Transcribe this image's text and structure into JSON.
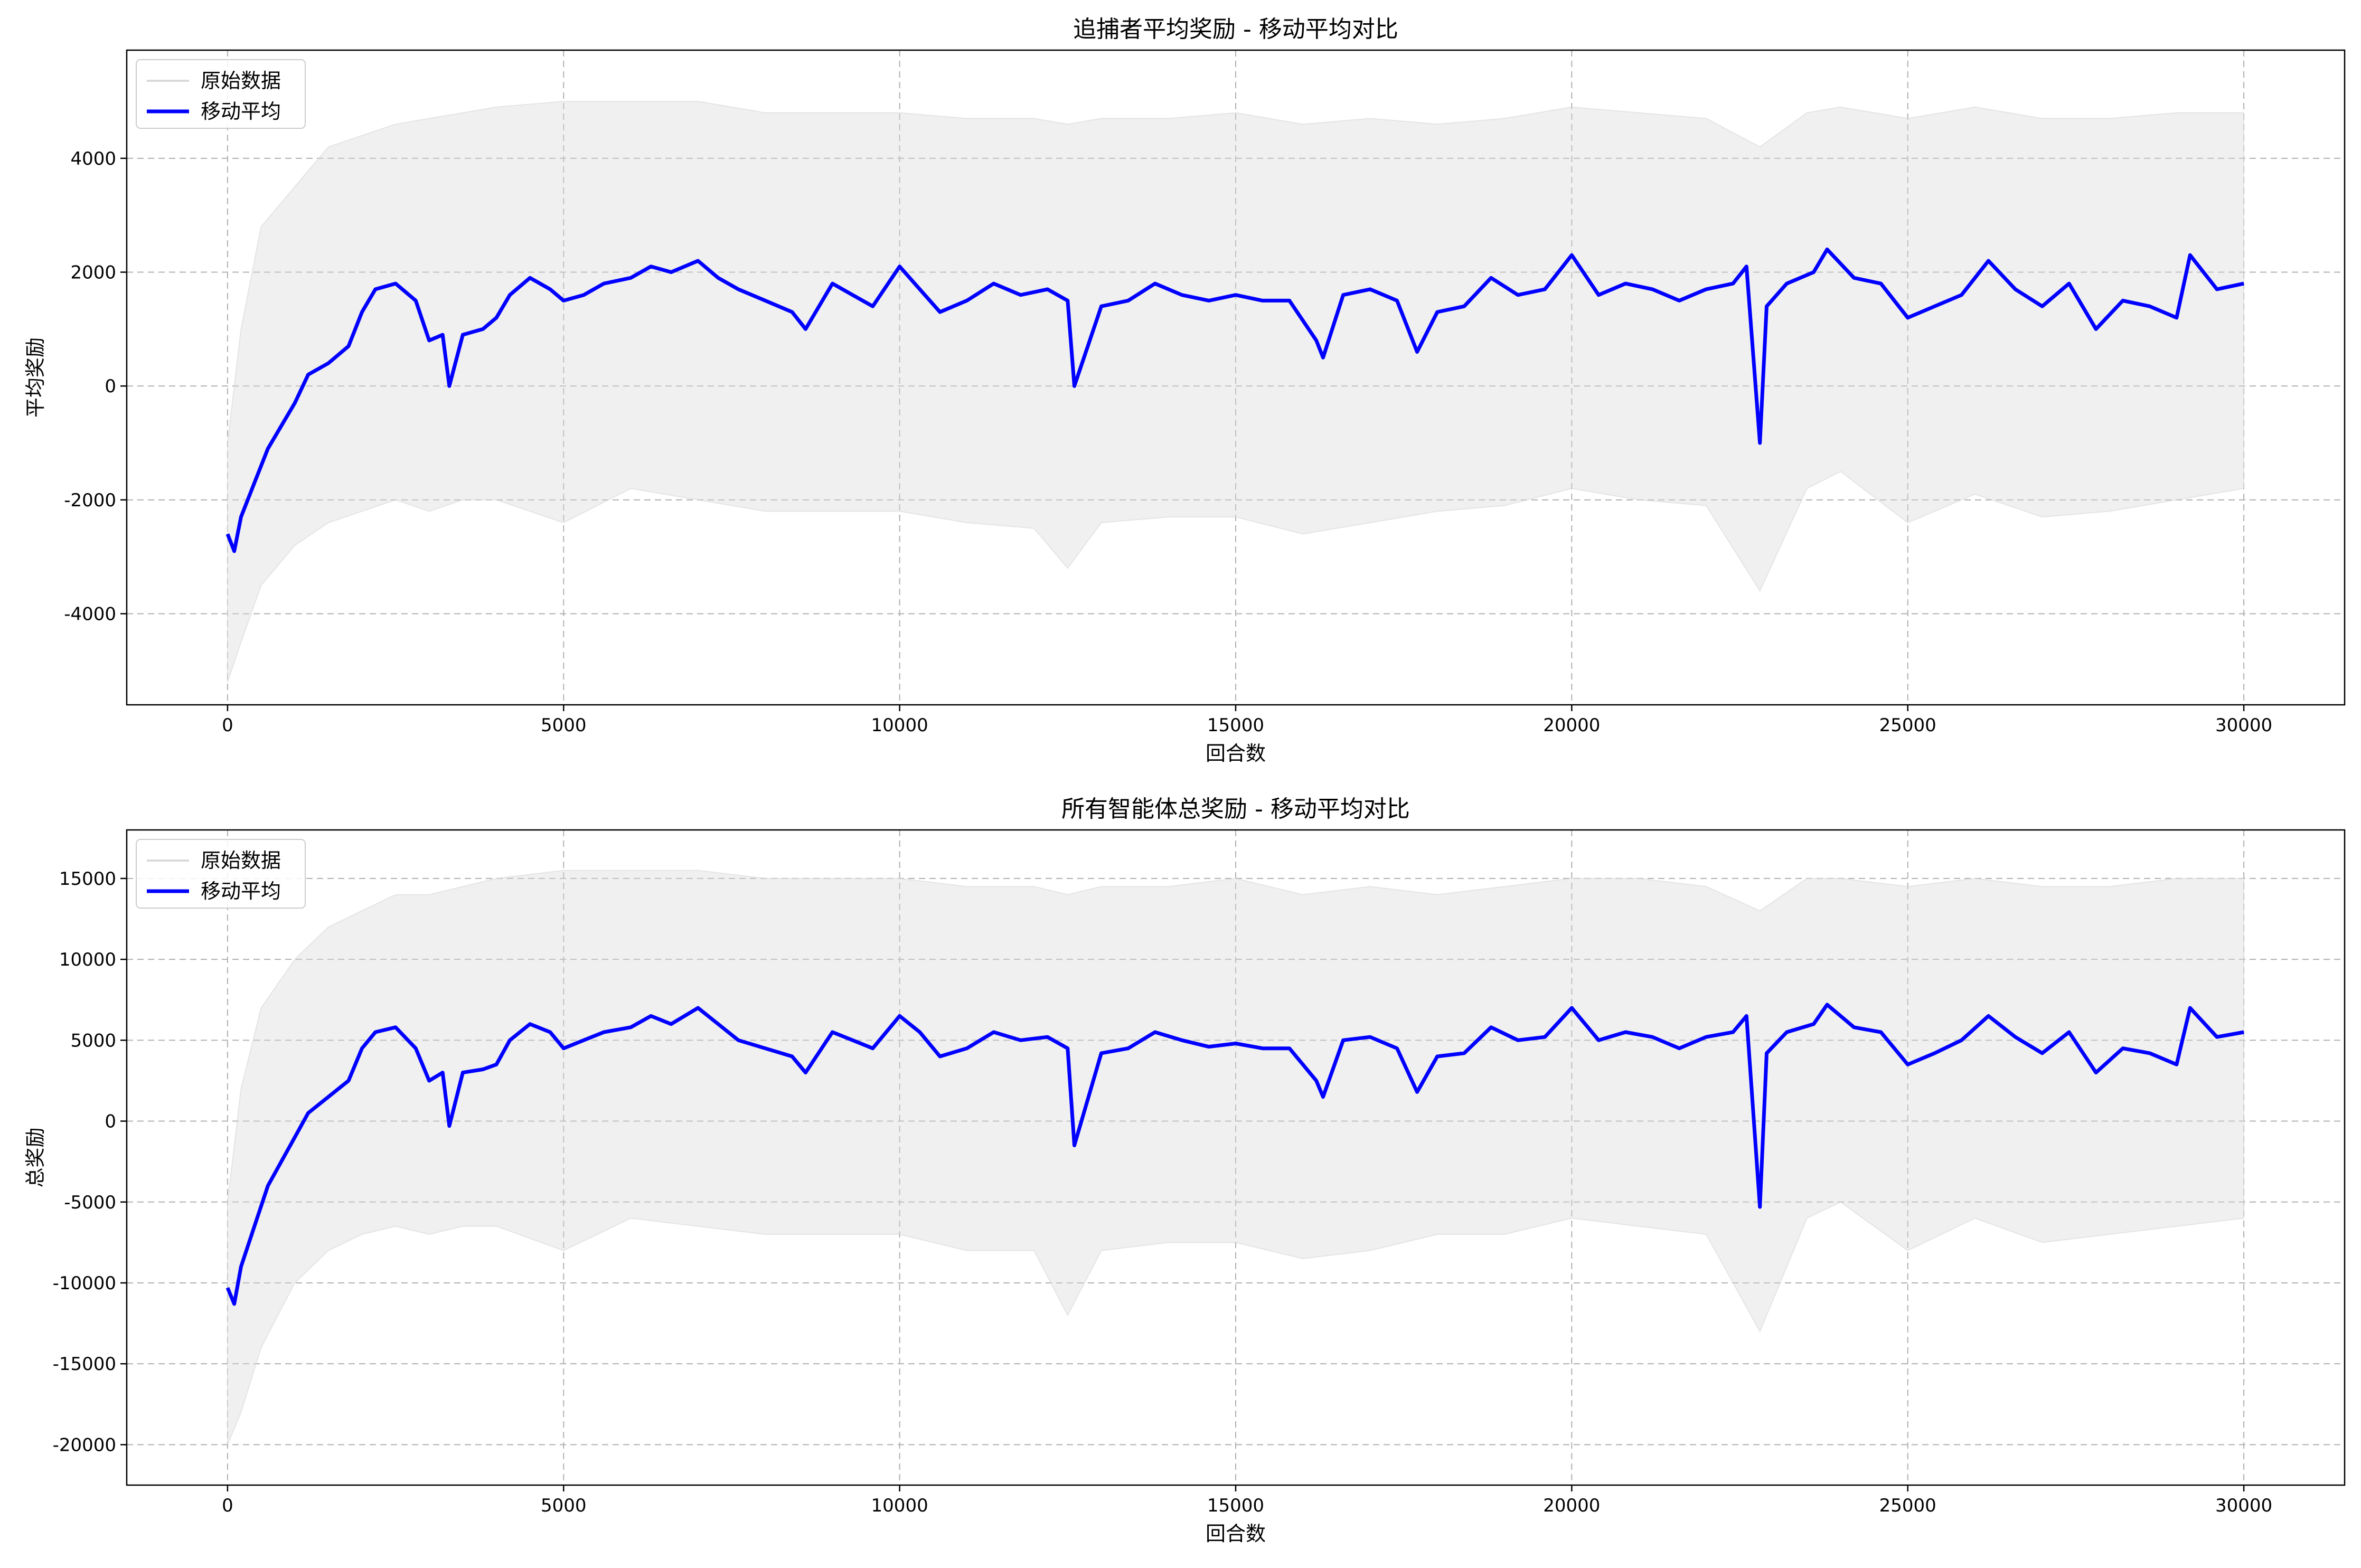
{
  "chart_data": [
    {
      "type": "line",
      "title": "追捕者平均奖励 - 移动平均对比",
      "xlabel": "回合数",
      "ylabel": "平均奖励",
      "xlim": [
        -1500,
        31500
      ],
      "ylim": [
        -5600,
        5900
      ],
      "xticks": [
        0,
        5000,
        10000,
        15000,
        20000,
        25000,
        30000
      ],
      "yticks": [
        -4000,
        -2000,
        0,
        2000,
        4000
      ],
      "grid": true,
      "legend_position": "top-left",
      "colors": {
        "raw": "#d9d9d9",
        "ma": "#0000ff"
      },
      "series": [
        {
          "name": "原始数据",
          "style": "band",
          "x": [
            0,
            200,
            500,
            1000,
            1500,
            2000,
            2500,
            3000,
            3500,
            4000,
            5000,
            6000,
            7000,
            8000,
            9000,
            10000,
            11000,
            12000,
            12500,
            13000,
            14000,
            15000,
            16000,
            17000,
            18000,
            19000,
            20000,
            21000,
            22000,
            22800,
            23500,
            24000,
            25000,
            26000,
            27000,
            28000,
            29000,
            30000
          ],
          "upper": [
            -1000,
            1000,
            2800,
            3500,
            4200,
            4400,
            4600,
            4700,
            4800,
            4900,
            5000,
            5000,
            5000,
            4800,
            4800,
            4800,
            4700,
            4700,
            4600,
            4700,
            4700,
            4800,
            4600,
            4700,
            4600,
            4700,
            4900,
            4800,
            4700,
            4200,
            4800,
            4900,
            4700,
            4900,
            4700,
            4700,
            4800,
            4800
          ],
          "lower": [
            -5200,
            -4500,
            -3500,
            -2800,
            -2400,
            -2200,
            -2000,
            -2200,
            -2000,
            -2000,
            -2400,
            -1800,
            -2000,
            -2200,
            -2200,
            -2200,
            -2400,
            -2500,
            -3200,
            -2400,
            -2300,
            -2300,
            -2600,
            -2400,
            -2200,
            -2100,
            -1800,
            -2000,
            -2100,
            -3600,
            -1800,
            -1500,
            -2400,
            -1900,
            -2300,
            -2200,
            -2000,
            -1800
          ]
        },
        {
          "name": "移动平均",
          "x": [
            0,
            100,
            200,
            400,
            600,
            800,
            1000,
            1200,
            1500,
            1800,
            2000,
            2200,
            2500,
            2800,
            3000,
            3200,
            3300,
            3500,
            3800,
            4000,
            4200,
            4500,
            4800,
            5000,
            5300,
            5600,
            6000,
            6300,
            6600,
            7000,
            7300,
            7600,
            8000,
            8400,
            8600,
            9000,
            9300,
            9600,
            10000,
            10300,
            10600,
            11000,
            11400,
            11800,
            12200,
            12500,
            12600,
            13000,
            13400,
            13800,
            14200,
            14600,
            15000,
            15400,
            15800,
            16200,
            16300,
            16600,
            17000,
            17400,
            17700,
            18000,
            18400,
            18800,
            19200,
            19600,
            20000,
            20400,
            20800,
            21200,
            21600,
            22000,
            22400,
            22600,
            22800,
            22900,
            23200,
            23600,
            23800,
            24200,
            24600,
            25000,
            25400,
            25800,
            26200,
            26600,
            27000,
            27400,
            27800,
            28200,
            28600,
            29000,
            29200,
            29600,
            30000
          ],
          "y": [
            -2600,
            -2900,
            -2300,
            -1700,
            -1100,
            -700,
            -300,
            200,
            400,
            700,
            1300,
            1700,
            1800,
            1500,
            800,
            900,
            0,
            900,
            1000,
            1200,
            1600,
            1900,
            1700,
            1500,
            1600,
            1800,
            1900,
            2100,
            2000,
            2200,
            1900,
            1700,
            1500,
            1300,
            1000,
            1800,
            1600,
            1400,
            2100,
            1700,
            1300,
            1500,
            1800,
            1600,
            1700,
            1500,
            0,
            1400,
            1500,
            1800,
            1600,
            1500,
            1600,
            1500,
            1500,
            800,
            500,
            1600,
            1700,
            1500,
            600,
            1300,
            1400,
            1900,
            1600,
            1700,
            2300,
            1600,
            1800,
            1700,
            1500,
            1700,
            1800,
            2100,
            -1000,
            1400,
            1800,
            2000,
            2400,
            1900,
            1800,
            1200,
            1400,
            1600,
            2200,
            1700,
            1400,
            1800,
            1000,
            1500,
            1400,
            1200,
            2300,
            1700,
            1800
          ]
        }
      ]
    },
    {
      "type": "line",
      "title": "所有智能体总奖励 - 移动平均对比",
      "xlabel": "回合数",
      "ylabel": "总奖励",
      "xlim": [
        -1500,
        31500
      ],
      "ylim": [
        -22500,
        18000
      ],
      "xticks": [
        0,
        5000,
        10000,
        15000,
        20000,
        25000,
        30000
      ],
      "yticks": [
        -20000,
        -15000,
        -10000,
        -5000,
        0,
        5000,
        10000,
        15000
      ],
      "grid": true,
      "legend_position": "top-left",
      "colors": {
        "raw": "#d9d9d9",
        "ma": "#0000ff"
      },
      "series": [
        {
          "name": "原始数据",
          "style": "band",
          "x": [
            0,
            200,
            500,
            1000,
            1500,
            2000,
            2500,
            3000,
            3500,
            4000,
            5000,
            6000,
            7000,
            8000,
            9000,
            10000,
            11000,
            12000,
            12500,
            13000,
            14000,
            15000,
            16000,
            17000,
            18000,
            19000,
            20000,
            21000,
            22000,
            22800,
            23500,
            24000,
            25000,
            26000,
            27000,
            28000,
            29000,
            30000
          ],
          "upper": [
            -5000,
            2000,
            7000,
            10000,
            12000,
            13000,
            14000,
            14000,
            14500,
            15000,
            15500,
            15500,
            15500,
            15000,
            15000,
            15000,
            14500,
            14500,
            14000,
            14500,
            14500,
            15000,
            14000,
            14500,
            14000,
            14500,
            15000,
            15000,
            14500,
            13000,
            15000,
            15000,
            14500,
            15000,
            14500,
            14500,
            15000,
            15000
          ],
          "lower": [
            -20000,
            -18000,
            -14000,
            -10000,
            -8000,
            -7000,
            -6500,
            -7000,
            -6500,
            -6500,
            -8000,
            -6000,
            -6500,
            -7000,
            -7000,
            -7000,
            -8000,
            -8000,
            -12000,
            -8000,
            -7500,
            -7500,
            -8500,
            -8000,
            -7000,
            -7000,
            -6000,
            -6500,
            -7000,
            -13000,
            -6000,
            -5000,
            -8000,
            -6000,
            -7500,
            -7000,
            -6500,
            -6000
          ]
        },
        {
          "name": "移动平均",
          "x": [
            0,
            100,
            200,
            400,
            600,
            800,
            1000,
            1200,
            1500,
            1800,
            2000,
            2200,
            2500,
            2800,
            3000,
            3200,
            3300,
            3500,
            3800,
            4000,
            4200,
            4500,
            4800,
            5000,
            5300,
            5600,
            6000,
            6300,
            6600,
            7000,
            7300,
            7600,
            8000,
            8400,
            8600,
            9000,
            9300,
            9600,
            10000,
            10300,
            10600,
            11000,
            11400,
            11800,
            12200,
            12500,
            12600,
            13000,
            13400,
            13800,
            14200,
            14600,
            15000,
            15400,
            15800,
            16200,
            16300,
            16600,
            17000,
            17400,
            17700,
            18000,
            18400,
            18800,
            19200,
            19600,
            20000,
            20400,
            20800,
            21200,
            21600,
            22000,
            22400,
            22600,
            22800,
            22900,
            23200,
            23600,
            23800,
            24200,
            24600,
            25000,
            25400,
            25800,
            26200,
            26600,
            27000,
            27400,
            27800,
            28200,
            28600,
            29000,
            29200,
            29600,
            30000
          ],
          "y": [
            -10300,
            -11300,
            -9000,
            -6500,
            -4000,
            -2500,
            -1000,
            500,
            1500,
            2500,
            4500,
            5500,
            5800,
            4500,
            2500,
            3000,
            -300,
            3000,
            3200,
            3500,
            5000,
            6000,
            5500,
            4500,
            5000,
            5500,
            5800,
            6500,
            6000,
            7000,
            6000,
            5000,
            4500,
            4000,
            3000,
            5500,
            5000,
            4500,
            6500,
            5500,
            4000,
            4500,
            5500,
            5000,
            5200,
            4500,
            -1500,
            4200,
            4500,
            5500,
            5000,
            4600,
            4800,
            4500,
            4500,
            2500,
            1500,
            5000,
            5200,
            4500,
            1800,
            4000,
            4200,
            5800,
            5000,
            5200,
            7000,
            5000,
            5500,
            5200,
            4500,
            5200,
            5500,
            6500,
            -5300,
            4200,
            5500,
            6000,
            7200,
            5800,
            5500,
            3500,
            4200,
            5000,
            6500,
            5200,
            4200,
            5500,
            3000,
            4500,
            4200,
            3500,
            7000,
            5200,
            5500
          ]
        }
      ]
    }
  ]
}
